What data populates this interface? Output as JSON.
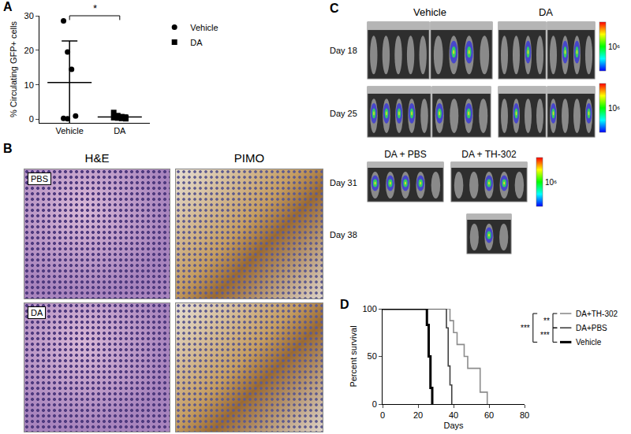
{
  "chart_data": [
    {
      "panel_label": "A",
      "type": "scatter",
      "y_label": "% Circulating GFP+ cells",
      "series": [
        {
          "name": "Vehicle",
          "marker": "circle",
          "color": "#000000",
          "values": [
            28.5,
            19.5,
            14.5,
            1.0,
            0.3,
            0.2
          ],
          "mean": 10.7,
          "error": 12.0
        },
        {
          "name": "DA",
          "marker": "square",
          "color": "#000000",
          "values": [
            2.0,
            1.1,
            0.8,
            0.6,
            0.5,
            0.4,
            0.3,
            0.2
          ],
          "mean": 0.7,
          "error": 0.6
        }
      ],
      "ylim": [
        -1,
        30
      ],
      "yticks": [
        0,
        10,
        20,
        30
      ],
      "grid": false,
      "legend": "right",
      "significance": [
        {
          "between": [
            "Vehicle",
            "DA"
          ],
          "text": "*"
        }
      ]
    },
    {
      "panel_label": "D",
      "type": "step",
      "x_label": "Days",
      "y_label": "Percent survival",
      "series": [
        {
          "name": "DA+TH-302",
          "color": "#8c8c8c",
          "line_style": "solid",
          "x": [
            0,
            37,
            38,
            40,
            42,
            46,
            48,
            55,
            59
          ],
          "values": [
            100,
            100,
            87.5,
            75,
            62.5,
            50,
            37.5,
            12.5,
            0
          ]
        },
        {
          "name": "DA+PBS",
          "color": "#404040",
          "line_style": "solid",
          "x": [
            0,
            35,
            36,
            37,
            38,
            39
          ],
          "values": [
            100,
            100,
            80,
            40,
            20,
            0
          ]
        },
        {
          "name": "Vehicle",
          "color": "#000000",
          "line_style": "thick",
          "x": [
            0,
            24,
            25,
            26,
            27,
            28
          ],
          "values": [
            100,
            100,
            83,
            50,
            17,
            0
          ]
        }
      ],
      "xlim": [
        0,
        80
      ],
      "xticks": [
        0,
        20,
        40,
        60,
        80
      ],
      "ylim": [
        0,
        100
      ],
      "yticks": [
        0,
        50,
        100
      ],
      "grid": false,
      "legend": "top right",
      "significance": [
        {
          "between": [
            "DA+TH-302",
            "DA+PBS"
          ],
          "text": "**"
        },
        {
          "between": [
            "DA+PBS",
            "Vehicle"
          ],
          "text": "***"
        },
        {
          "between": [
            "DA+TH-302",
            "Vehicle"
          ],
          "text": "***"
        }
      ]
    }
  ],
  "figure": {
    "panel_B": {
      "label": "B",
      "columns": [
        "H&E",
        "PIMO"
      ],
      "rows": [
        "PBS",
        "DA"
      ]
    },
    "panel_C": {
      "label": "C",
      "groups": [
        "Vehicle",
        "DA"
      ],
      "rows": [
        {
          "day": "Day 18"
        },
        {
          "day": "Day 25"
        },
        {
          "day": "Day 31",
          "groups": [
            "DA + PBS",
            "DA + TH-302"
          ]
        },
        {
          "day": "Day 38"
        }
      ],
      "scale_label": "10⁶"
    }
  }
}
